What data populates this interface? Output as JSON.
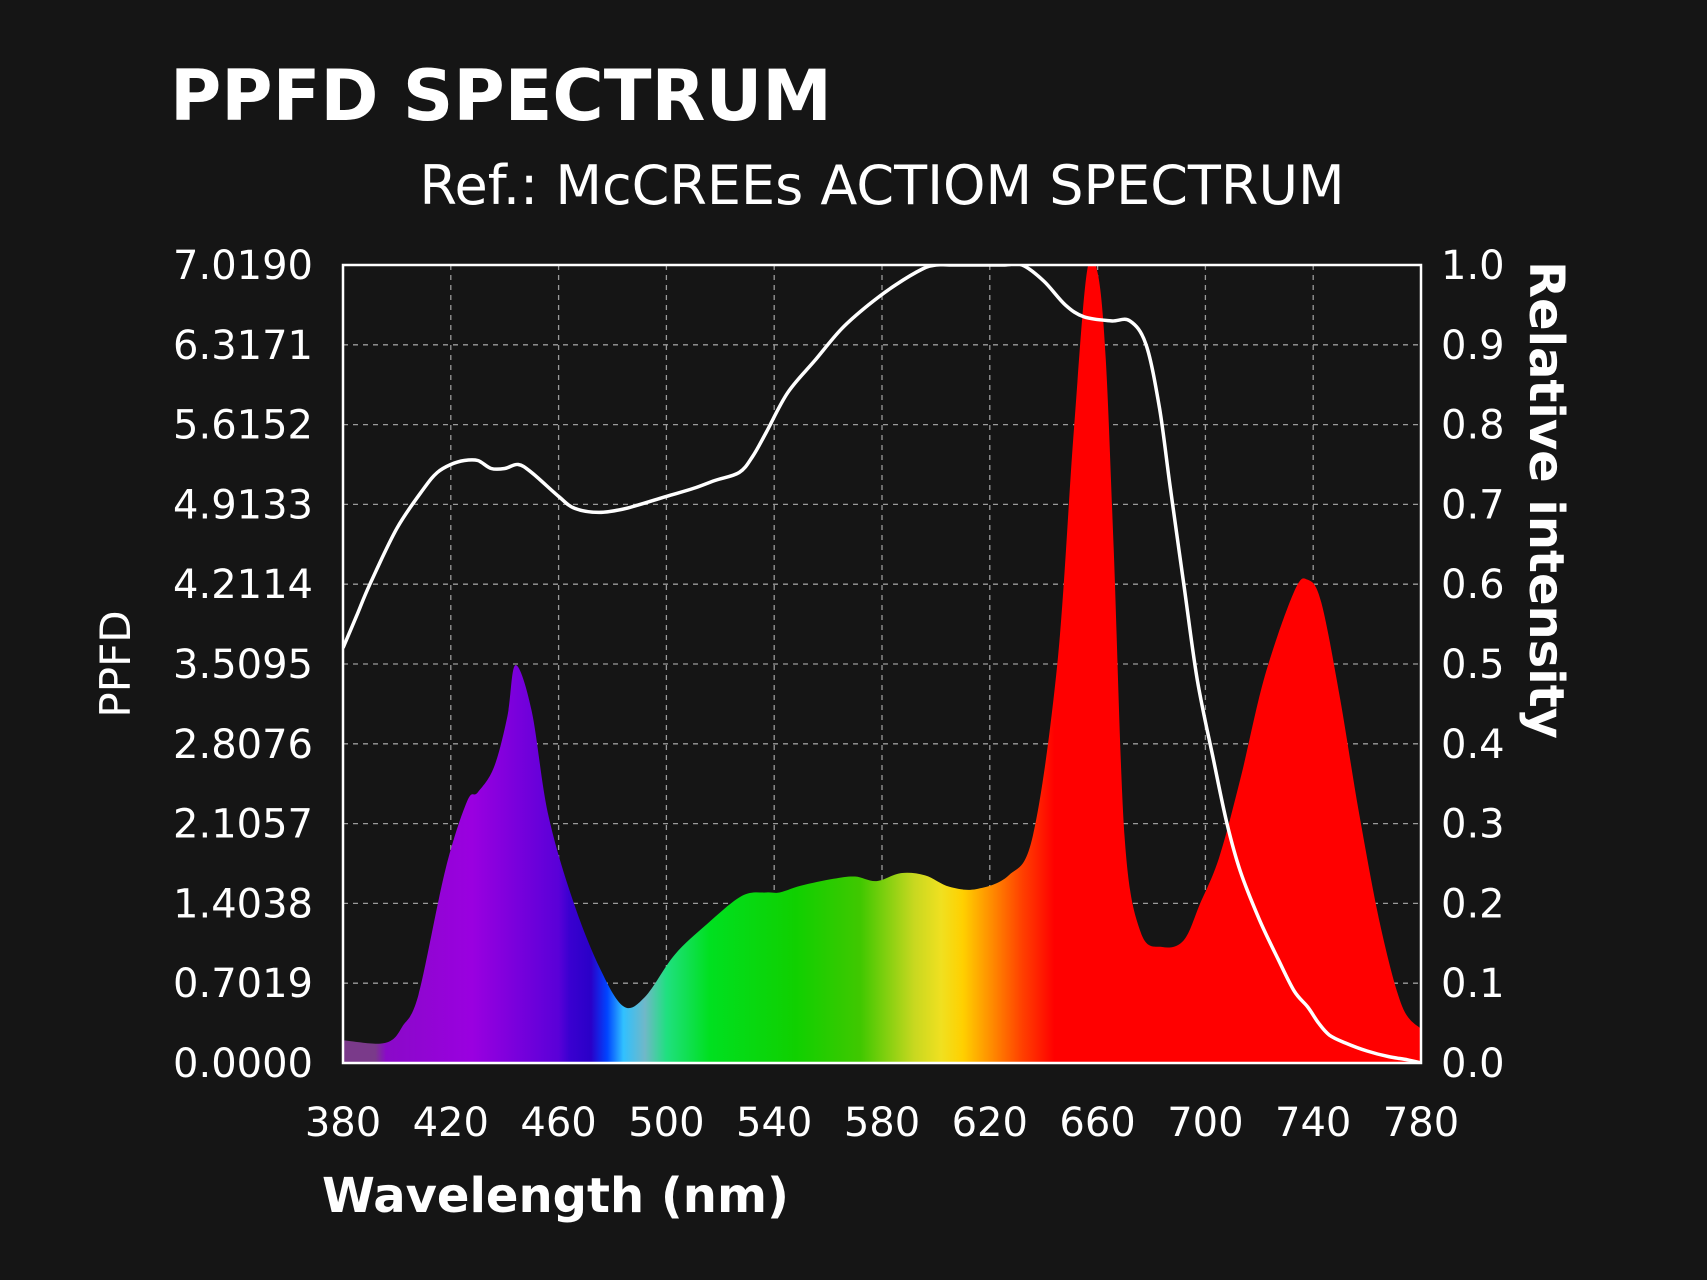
{
  "colors": {
    "background": "#151515",
    "text": "#ffffff",
    "curve": "#ffffff",
    "grid": "#9a9a9a"
  },
  "chart_data": {
    "type": "area",
    "title": "PPFD SPECTRUM",
    "subtitle": "Ref.: McCREEs ACTIOM SPECTRUM",
    "xlabel": "Wavelength (nm)",
    "ylabel_left": "PPFD",
    "ylabel_right": "Relative intensity",
    "xlim": [
      380,
      780
    ],
    "ylim_left": [
      0,
      7.019
    ],
    "ylim_right": [
      0,
      1.0
    ],
    "x_ticks": [
      "380",
      "420",
      "460",
      "500",
      "540",
      "580",
      "620",
      "660",
      "700",
      "740",
      "780"
    ],
    "y_left_ticks": [
      "0.0000",
      "0.7019",
      "1.4038",
      "2.1057",
      "2.8076",
      "3.5095",
      "4.2114",
      "4.9133",
      "5.6152",
      "6.3171",
      "7.0190"
    ],
    "y_right_ticks": [
      "0.0",
      "0.1",
      "0.2",
      "0.3",
      "0.4",
      "0.5",
      "0.6",
      "0.7",
      "0.8",
      "0.9",
      "1.0"
    ],
    "grid": true,
    "grid_style": "dashed",
    "series": [
      {
        "kind": "area",
        "axis": "left",
        "fill": "spectral-rainbow",
        "x": [
          380,
          392,
          398,
          402,
          408,
          418,
          426,
          430,
          436,
          441,
          444,
          450,
          456,
          465,
          475,
          484,
          492,
          503,
          515,
          528,
          537,
          542,
          550,
          562,
          570,
          578,
          587,
          596,
          605,
          615,
          627,
          636,
          645,
          651,
          656,
          660,
          663,
          666,
          670,
          676,
          684,
          692,
          698,
          705,
          713,
          722,
          733,
          738,
          743,
          750,
          757,
          765,
          773,
          780
        ],
        "y": [
          0.2,
          0.17,
          0.2,
          0.32,
          0.6,
          1.7,
          2.3,
          2.38,
          2.6,
          3.05,
          3.5,
          3.1,
          2.2,
          1.45,
          0.85,
          0.5,
          0.58,
          0.95,
          1.22,
          1.47,
          1.5,
          1.5,
          1.56,
          1.62,
          1.64,
          1.6,
          1.67,
          1.65,
          1.55,
          1.53,
          1.65,
          2.0,
          3.5,
          5.5,
          6.95,
          6.95,
          6.2,
          4.5,
          2.0,
          1.15,
          1.02,
          1.08,
          1.4,
          1.8,
          2.5,
          3.4,
          4.15,
          4.25,
          4.05,
          3.2,
          2.2,
          1.2,
          0.5,
          0.3
        ]
      },
      {
        "kind": "line",
        "axis": "right",
        "color": "#ffffff",
        "x": [
          380,
          385,
          390,
          400,
          410,
          415,
          420,
          425,
          430,
          435,
          440,
          445,
          450,
          460,
          466,
          475,
          485,
          500,
          510,
          518,
          527,
          532,
          537,
          545,
          555,
          565,
          575,
          585,
          595,
          600,
          605,
          615,
          625,
          632,
          640,
          648,
          655,
          665,
          672,
          678,
          683,
          687,
          692,
          697,
          703,
          708,
          713,
          720,
          727,
          733,
          738,
          742,
          746,
          752,
          760,
          768,
          775,
          780
        ],
        "y": [
          0.52,
          0.56,
          0.6,
          0.67,
          0.72,
          0.74,
          0.75,
          0.755,
          0.755,
          0.745,
          0.745,
          0.75,
          0.74,
          0.71,
          0.695,
          0.69,
          0.695,
          0.71,
          0.72,
          0.73,
          0.74,
          0.76,
          0.79,
          0.84,
          0.88,
          0.92,
          0.95,
          0.975,
          0.995,
          1.0,
          1.0,
          1.0,
          1.0,
          1.0,
          0.98,
          0.95,
          0.935,
          0.93,
          0.93,
          0.9,
          0.82,
          0.72,
          0.6,
          0.48,
          0.38,
          0.3,
          0.24,
          0.18,
          0.13,
          0.09,
          0.07,
          0.05,
          0.035,
          0.025,
          0.015,
          0.008,
          0.004,
          0.0
        ]
      }
    ]
  }
}
